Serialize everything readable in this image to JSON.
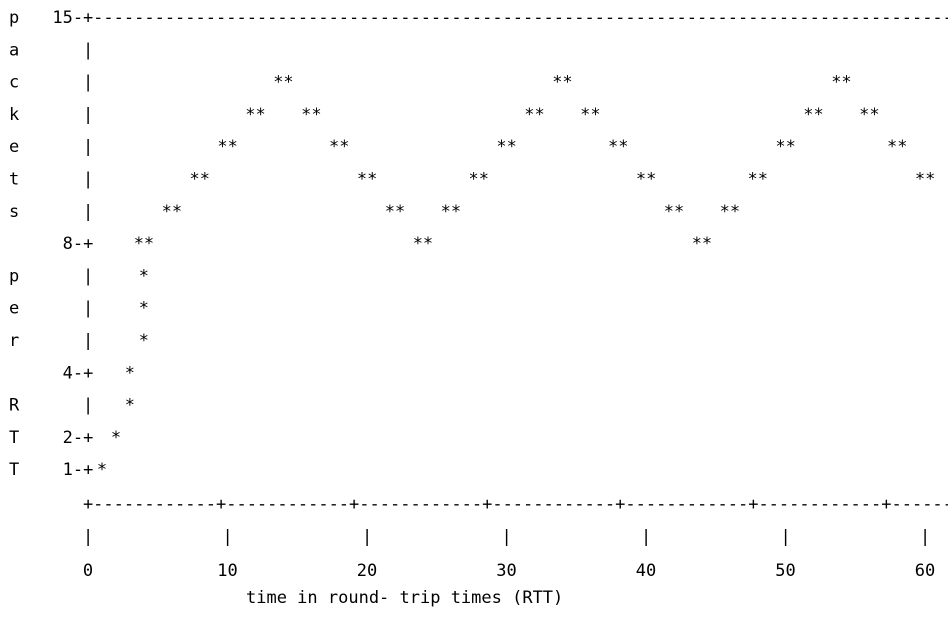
{
  "chart_data": {
    "type": "scatter",
    "marker": "**",
    "ylabel_letters": [
      "p",
      "a",
      "c",
      "k",
      "e",
      "t",
      "s",
      "",
      "p",
      "e",
      "r",
      "",
      "R",
      "T",
      "T"
    ],
    "xlabel": "time in round- trip times (RTT)",
    "y_ticks": [
      "15",
      "8",
      "4",
      "2",
      "1"
    ],
    "x_ticks": [
      "0",
      "10",
      "20",
      "30",
      "40",
      "50",
      "60"
    ],
    "xlim": [
      0,
      60
    ],
    "ylim": [
      1,
      15
    ],
    "points": [
      {
        "x": 1,
        "y": 1
      },
      {
        "x": 2,
        "y": 2
      },
      {
        "x": 3,
        "y": 3
      },
      {
        "x": 3,
        "y": 4
      },
      {
        "x": 4,
        "y": 5
      },
      {
        "x": 4,
        "y": 6
      },
      {
        "x": 4,
        "y": 7
      },
      {
        "x": 4,
        "y": 8
      },
      {
        "x": 6,
        "y": 9
      },
      {
        "x": 8,
        "y": 10
      },
      {
        "x": 10,
        "y": 11
      },
      {
        "x": 12,
        "y": 12
      },
      {
        "x": 14,
        "y": 13
      },
      {
        "x": 16,
        "y": 12
      },
      {
        "x": 18,
        "y": 11
      },
      {
        "x": 20,
        "y": 10
      },
      {
        "x": 22,
        "y": 9
      },
      {
        "x": 24,
        "y": 8
      },
      {
        "x": 26,
        "y": 9
      },
      {
        "x": 28,
        "y": 10
      },
      {
        "x": 30,
        "y": 11
      },
      {
        "x": 32,
        "y": 12
      },
      {
        "x": 34,
        "y": 13
      },
      {
        "x": 36,
        "y": 12
      },
      {
        "x": 38,
        "y": 11
      },
      {
        "x": 40,
        "y": 10
      },
      {
        "x": 42,
        "y": 9
      },
      {
        "x": 44,
        "y": 8
      },
      {
        "x": 46,
        "y": 9
      },
      {
        "x": 48,
        "y": 10
      },
      {
        "x": 50,
        "y": 11
      },
      {
        "x": 52,
        "y": 12
      },
      {
        "x": 54,
        "y": 13
      },
      {
        "x": 56,
        "y": 12
      },
      {
        "x": 58,
        "y": 11
      },
      {
        "x": 60,
        "y": 10
      }
    ]
  }
}
